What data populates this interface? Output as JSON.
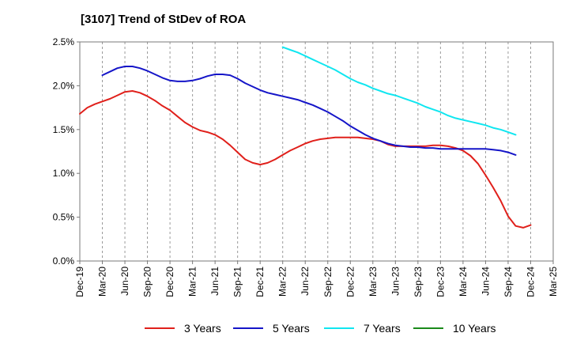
{
  "title": "[3107]  Trend of StDev of ROA",
  "chart_data": {
    "type": "line",
    "title": "[3107]  Trend of StDev of ROA",
    "xlabel": "",
    "ylabel": "",
    "x_ticks": [
      "Dec-19",
      "Mar-20",
      "Jun-20",
      "Sep-20",
      "Dec-20",
      "Mar-21",
      "Jun-21",
      "Sep-21",
      "Dec-21",
      "Mar-22",
      "Jun-22",
      "Sep-22",
      "Dec-22",
      "Mar-23",
      "Jun-23",
      "Sep-23",
      "Dec-23",
      "Mar-24",
      "Jun-24",
      "Sep-24",
      "Dec-24",
      "Mar-25"
    ],
    "y_ticks": [
      "0.0%",
      "0.5%",
      "1.0%",
      "1.5%",
      "2.0%",
      "2.5%"
    ],
    "ylim": [
      0,
      2.5
    ],
    "y_unit": "%",
    "grid": "vertical dashed",
    "legend_position": "bottom",
    "series": [
      {
        "name": "3 Years",
        "color": "#e0201b",
        "points": [
          [
            "Dec-19",
            1.68
          ],
          [
            "Jan-20",
            1.75
          ],
          [
            "Feb-20",
            1.79
          ],
          [
            "Mar-20",
            1.82
          ],
          [
            "Apr-20",
            1.85
          ],
          [
            "May-20",
            1.89
          ],
          [
            "Jun-20",
            1.93
          ],
          [
            "Jul-20",
            1.94
          ],
          [
            "Aug-20",
            1.92
          ],
          [
            "Sep-20",
            1.88
          ],
          [
            "Oct-20",
            1.83
          ],
          [
            "Nov-20",
            1.77
          ],
          [
            "Dec-20",
            1.72
          ],
          [
            "Jan-21",
            1.65
          ],
          [
            "Feb-21",
            1.58
          ],
          [
            "Mar-21",
            1.53
          ],
          [
            "Apr-21",
            1.49
          ],
          [
            "May-21",
            1.47
          ],
          [
            "Jun-21",
            1.44
          ],
          [
            "Jul-21",
            1.39
          ],
          [
            "Aug-21",
            1.32
          ],
          [
            "Sep-21",
            1.24
          ],
          [
            "Oct-21",
            1.16
          ],
          [
            "Nov-21",
            1.12
          ],
          [
            "Dec-21",
            1.1
          ],
          [
            "Jan-22",
            1.12
          ],
          [
            "Feb-22",
            1.16
          ],
          [
            "Mar-22",
            1.21
          ],
          [
            "Apr-22",
            1.26
          ],
          [
            "May-22",
            1.3
          ],
          [
            "Jun-22",
            1.34
          ],
          [
            "Jul-22",
            1.37
          ],
          [
            "Aug-22",
            1.39
          ],
          [
            "Sep-22",
            1.4
          ],
          [
            "Oct-22",
            1.41
          ],
          [
            "Nov-22",
            1.41
          ],
          [
            "Dec-22",
            1.41
          ],
          [
            "Jan-23",
            1.41
          ],
          [
            "Feb-23",
            1.4
          ],
          [
            "Mar-23",
            1.39
          ],
          [
            "Apr-23",
            1.37
          ],
          [
            "May-23",
            1.33
          ],
          [
            "Jun-23",
            1.31
          ],
          [
            "Jul-23",
            1.31
          ],
          [
            "Aug-23",
            1.31
          ],
          [
            "Sep-23",
            1.31
          ],
          [
            "Oct-23",
            1.31
          ],
          [
            "Nov-23",
            1.32
          ],
          [
            "Dec-23",
            1.32
          ],
          [
            "Jan-24",
            1.31
          ],
          [
            "Feb-24",
            1.29
          ],
          [
            "Mar-24",
            1.26
          ],
          [
            "Apr-24",
            1.2
          ],
          [
            "May-24",
            1.11
          ],
          [
            "Jun-24",
            0.98
          ],
          [
            "Jul-24",
            0.84
          ],
          [
            "Aug-24",
            0.69
          ],
          [
            "Sep-24",
            0.51
          ],
          [
            "Oct-24",
            0.4
          ],
          [
            "Nov-24",
            0.38
          ],
          [
            "Dec-24",
            0.41
          ]
        ]
      },
      {
        "name": "5 Years",
        "color": "#1515c8",
        "points": [
          [
            "Mar-20",
            2.12
          ],
          [
            "Apr-20",
            2.16
          ],
          [
            "May-20",
            2.2
          ],
          [
            "Jun-20",
            2.22
          ],
          [
            "Jul-20",
            2.22
          ],
          [
            "Aug-20",
            2.2
          ],
          [
            "Sep-20",
            2.17
          ],
          [
            "Oct-20",
            2.13
          ],
          [
            "Nov-20",
            2.09
          ],
          [
            "Dec-20",
            2.06
          ],
          [
            "Jan-21",
            2.05
          ],
          [
            "Feb-21",
            2.05
          ],
          [
            "Mar-21",
            2.06
          ],
          [
            "Apr-21",
            2.08
          ],
          [
            "May-21",
            2.11
          ],
          [
            "Jun-21",
            2.13
          ],
          [
            "Jul-21",
            2.13
          ],
          [
            "Aug-21",
            2.12
          ],
          [
            "Sep-21",
            2.08
          ],
          [
            "Oct-21",
            2.03
          ],
          [
            "Nov-21",
            1.99
          ],
          [
            "Dec-21",
            1.95
          ],
          [
            "Jan-22",
            1.92
          ],
          [
            "Feb-22",
            1.9
          ],
          [
            "Mar-22",
            1.88
          ],
          [
            "Apr-22",
            1.86
          ],
          [
            "May-22",
            1.84
          ],
          [
            "Jun-22",
            1.81
          ],
          [
            "Jul-22",
            1.78
          ],
          [
            "Aug-22",
            1.74
          ],
          [
            "Sep-22",
            1.7
          ],
          [
            "Oct-22",
            1.65
          ],
          [
            "Nov-22",
            1.6
          ],
          [
            "Dec-22",
            1.54
          ],
          [
            "Jan-23",
            1.49
          ],
          [
            "Feb-23",
            1.44
          ],
          [
            "Mar-23",
            1.4
          ],
          [
            "Apr-23",
            1.37
          ],
          [
            "May-23",
            1.34
          ],
          [
            "Jun-23",
            1.32
          ],
          [
            "Jul-23",
            1.31
          ],
          [
            "Aug-23",
            1.3
          ],
          [
            "Sep-23",
            1.3
          ],
          [
            "Oct-23",
            1.29
          ],
          [
            "Nov-23",
            1.29
          ],
          [
            "Dec-23",
            1.28
          ],
          [
            "Jan-24",
            1.28
          ],
          [
            "Feb-24",
            1.28
          ],
          [
            "Mar-24",
            1.28
          ],
          [
            "Apr-24",
            1.28
          ],
          [
            "May-24",
            1.28
          ],
          [
            "Jun-24",
            1.28
          ],
          [
            "Jul-24",
            1.27
          ],
          [
            "Aug-24",
            1.26
          ],
          [
            "Sep-24",
            1.24
          ],
          [
            "Oct-24",
            1.21
          ]
        ]
      },
      {
        "name": "7 Years",
        "color": "#10e6f0",
        "points": [
          [
            "Mar-22",
            2.44
          ],
          [
            "Apr-22",
            2.41
          ],
          [
            "May-22",
            2.38
          ],
          [
            "Jun-22",
            2.34
          ],
          [
            "Jul-22",
            2.3
          ],
          [
            "Aug-22",
            2.26
          ],
          [
            "Sep-22",
            2.22
          ],
          [
            "Oct-22",
            2.18
          ],
          [
            "Nov-22",
            2.13
          ],
          [
            "Dec-22",
            2.08
          ],
          [
            "Jan-23",
            2.04
          ],
          [
            "Feb-23",
            2.01
          ],
          [
            "Mar-23",
            1.97
          ],
          [
            "Apr-23",
            1.94
          ],
          [
            "May-23",
            1.91
          ],
          [
            "Jun-23",
            1.89
          ],
          [
            "Jul-23",
            1.86
          ],
          [
            "Aug-23",
            1.83
          ],
          [
            "Sep-23",
            1.8
          ],
          [
            "Oct-23",
            1.76
          ],
          [
            "Nov-23",
            1.73
          ],
          [
            "Dec-23",
            1.7
          ],
          [
            "Jan-24",
            1.66
          ],
          [
            "Feb-24",
            1.63
          ],
          [
            "Mar-24",
            1.61
          ],
          [
            "Apr-24",
            1.59
          ],
          [
            "May-24",
            1.57
          ],
          [
            "Jun-24",
            1.55
          ],
          [
            "Jul-24",
            1.52
          ],
          [
            "Aug-24",
            1.5
          ],
          [
            "Sep-24",
            1.47
          ],
          [
            "Oct-24",
            1.44
          ]
        ]
      },
      {
        "name": "10 Years",
        "color": "#1a8a1a",
        "points": []
      }
    ]
  }
}
